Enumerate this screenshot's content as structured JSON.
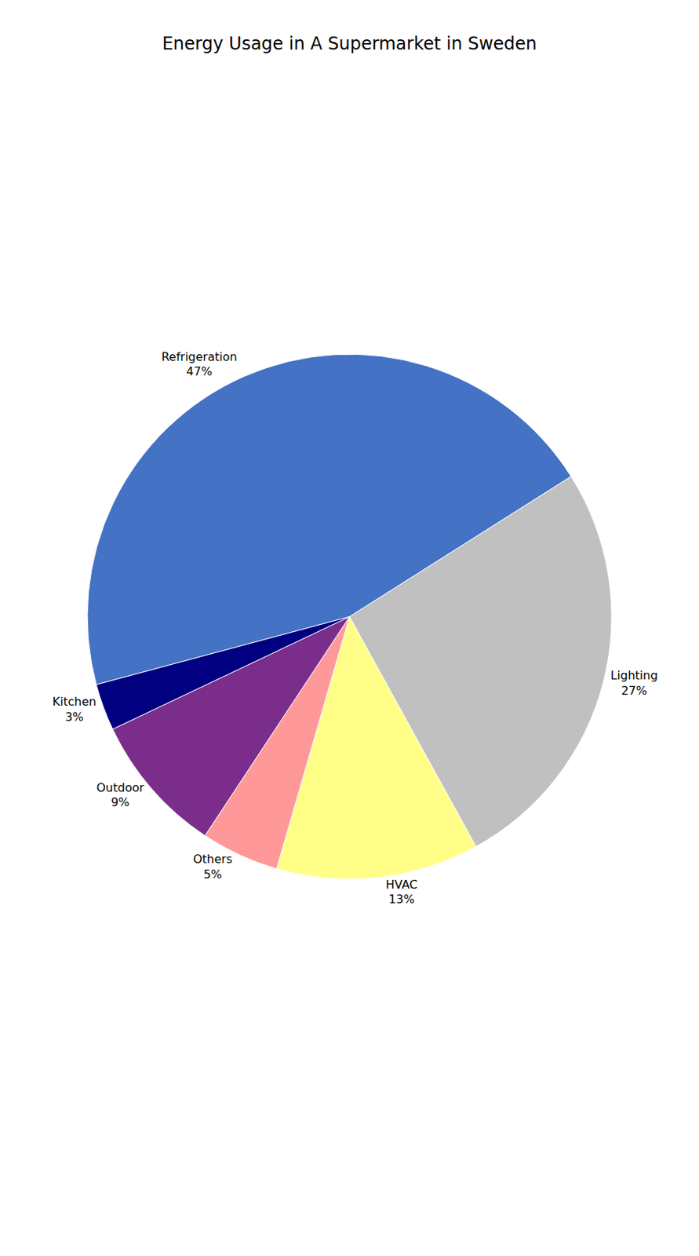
{
  "chart_data": {
    "type": "pie",
    "title": "Energy Usage in A Supermarket in Sweden",
    "categories": [
      "Refrigeration",
      "Lighting",
      "HVAC",
      "Others",
      "Outdoor",
      "Kitchen"
    ],
    "values": [
      47,
      27,
      13,
      5,
      9,
      3
    ],
    "value_labels": [
      "47%",
      "27%",
      "13%",
      "5%",
      "9%",
      "3%"
    ],
    "colors": [
      "#4472C4",
      "#C0C0C0",
      "#FFFF88",
      "#FF9999",
      "#7B2D8B",
      "#000080"
    ],
    "data_labels": true
  }
}
